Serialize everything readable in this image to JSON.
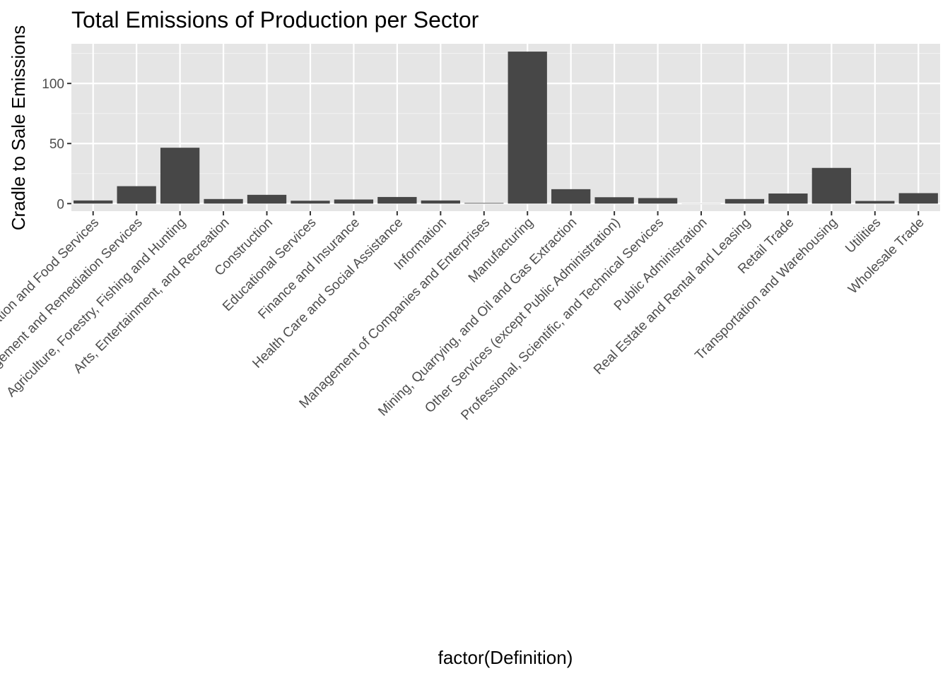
{
  "chart_data": {
    "type": "bar",
    "title": "Total Emissions of Production per Sector",
    "xlabel": "factor(Definition)",
    "ylabel": "Cradle to Sale Emissions",
    "categories": [
      "Accommodation and Food Services",
      "Administrative and Support and Waste Management and Remediation Services",
      "Agriculture, Forestry, Fishing and Hunting",
      "Arts, Entertainment, and Recreation",
      "Construction",
      "Educational Services",
      "Finance and Insurance",
      "Health Care and Social Assistance",
      "Information",
      "Management of Companies and Enterprises",
      "Manufacturing",
      "Mining, Quarrying, and Oil and Gas Extraction",
      "Other Services (except Public Administration)",
      "Professional, Scientific, and Technical Services",
      "Public Administration",
      "Real Estate and Rental and Leasing",
      "Retail Trade",
      "Transportation and Warehousing",
      "Utilities",
      "Wholesale Trade"
    ],
    "values": [
      2.6,
      14.5,
      46.5,
      3.8,
      7.3,
      2.4,
      3.4,
      5.5,
      2.6,
      0.5,
      126.5,
      12.0,
      5.3,
      4.6,
      0.1,
      3.8,
      8.4,
      29.7,
      2.2,
      8.7
    ],
    "yticks": [
      0,
      50,
      100
    ],
    "ylim": [
      -6.3,
      133
    ],
    "grid": true,
    "colors": {
      "bar": "#474747",
      "panel_background": "#e5e5e5",
      "grid_major": "#ffffff",
      "grid_minor": "#f2f2f2",
      "tick_text": "#4d4d4d",
      "text": "#000000"
    }
  }
}
